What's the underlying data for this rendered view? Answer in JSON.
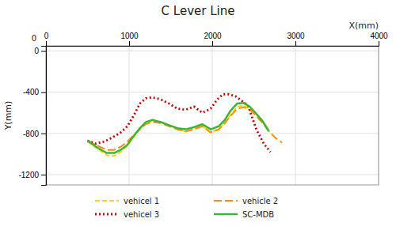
{
  "chart_data": {
    "type": "line",
    "title": "C  Lever Line",
    "x_label": "X(mm)",
    "y_label": "Y(mm)",
    "xlim": [
      0,
      4000
    ],
    "ylim": [
      -1300,
      50
    ],
    "xticks": [
      0,
      1000,
      2000,
      3000,
      4000
    ],
    "yticks": [
      0,
      -400,
      -800,
      -1200
    ],
    "grid": true,
    "annotations": [
      {
        "text": "0"
      }
    ],
    "series": [
      {
        "name": "vehicel 1",
        "color": "#FFD700",
        "line_style": "dashed",
        "x": [
          500,
          620,
          730,
          820,
          900,
          980,
          1050,
          1130,
          1200,
          1280,
          1380,
          1480,
          1580,
          1680,
          1780,
          1880,
          1980,
          2080,
          2150,
          2220,
          2300,
          2380,
          2450,
          2520,
          2600,
          2680
        ],
        "values": [
          -880,
          -950,
          -1010,
          -1020,
          -980,
          -920,
          -840,
          -760,
          -700,
          -680,
          -690,
          -720,
          -760,
          -780,
          -760,
          -730,
          -790,
          -760,
          -700,
          -620,
          -540,
          -530,
          -560,
          -610,
          -680,
          -760
        ]
      },
      {
        "name": "vehicle 2",
        "color": "#FF8C00",
        "line_style": "long-dashed",
        "x": [
          500,
          620,
          730,
          820,
          900,
          980,
          1050,
          1130,
          1200,
          1280,
          1380,
          1480,
          1580,
          1680,
          1780,
          1880,
          1980,
          2080,
          2150,
          2220,
          2300,
          2380,
          2450,
          2520,
          2600,
          2680,
          2760,
          2840
        ],
        "values": [
          -870,
          -920,
          -960,
          -960,
          -930,
          -880,
          -820,
          -760,
          -710,
          -690,
          -700,
          -730,
          -760,
          -780,
          -760,
          -730,
          -790,
          -760,
          -700,
          -630,
          -560,
          -545,
          -570,
          -620,
          -695,
          -775,
          -845,
          -890
        ]
      },
      {
        "name": "vehicel 3",
        "color": "#CC0000",
        "line_style": "dotted",
        "x": [
          500,
          600,
          700,
          800,
          900,
          980,
          1060,
          1130,
          1200,
          1280,
          1380,
          1480,
          1580,
          1680,
          1780,
          1880,
          1980,
          2060,
          2130,
          2200,
          2280,
          2350,
          2430,
          2530,
          2620,
          2700
        ],
        "values": [
          -870,
          -900,
          -880,
          -840,
          -790,
          -730,
          -620,
          -510,
          -460,
          -450,
          -470,
          -510,
          -560,
          -570,
          -540,
          -600,
          -560,
          -470,
          -420,
          -420,
          -440,
          -480,
          -530,
          -760,
          -900,
          -980
        ]
      },
      {
        "name": "SC-MDB",
        "color": "#3AB53A",
        "line_style": "solid",
        "x": [
          500,
          620,
          730,
          820,
          900,
          980,
          1050,
          1130,
          1200,
          1280,
          1380,
          1480,
          1580,
          1680,
          1780,
          1880,
          1980,
          2080,
          2150,
          2220,
          2300,
          2380,
          2450,
          2520,
          2600,
          2680
        ],
        "values": [
          -870,
          -940,
          -990,
          -990,
          -960,
          -910,
          -830,
          -750,
          -690,
          -670,
          -690,
          -720,
          -750,
          -760,
          -740,
          -710,
          -760,
          -730,
          -670,
          -580,
          -510,
          -505,
          -540,
          -600,
          -675,
          -780
        ]
      }
    ]
  }
}
